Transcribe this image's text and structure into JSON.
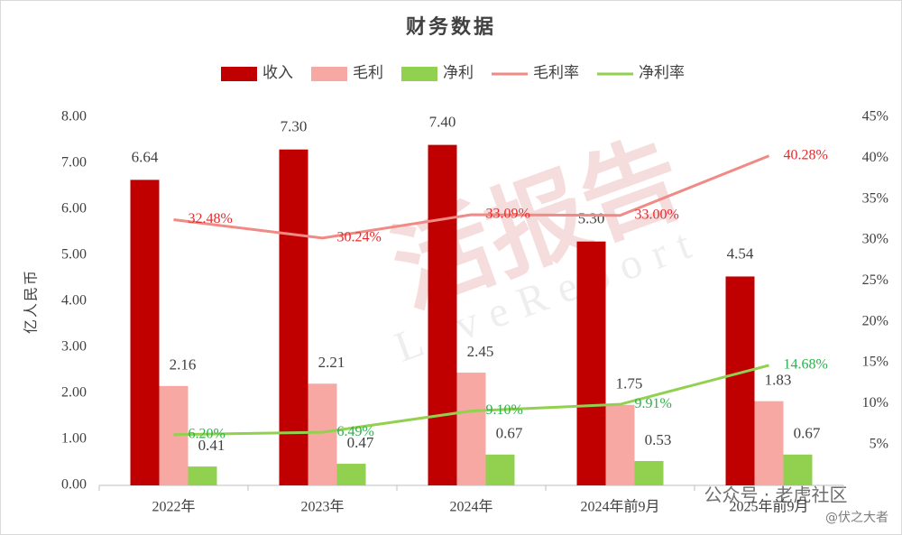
{
  "chart_data": {
    "type": "bar_line",
    "title": "财务数据",
    "ylabel": "亿人民币",
    "categories": [
      "2022年",
      "2023年",
      "2024年",
      "2024年前9月",
      "2025年前9月"
    ],
    "series": [
      {
        "name": "收入",
        "type": "bar",
        "color": "#c00000",
        "values": [
          6.64,
          7.3,
          7.4,
          5.3,
          4.54
        ],
        "value_labels": [
          "6.64",
          "7.30",
          "7.40",
          "5.30",
          "4.54"
        ]
      },
      {
        "name": "毛利",
        "type": "bar",
        "color": "#f7a8a2",
        "values": [
          2.16,
          2.21,
          2.45,
          1.75,
          1.83
        ],
        "value_labels": [
          "2.16",
          "2.21",
          "2.45",
          "1.75",
          "1.83"
        ]
      },
      {
        "name": "净利",
        "type": "bar",
        "color": "#92d050",
        "values": [
          0.41,
          0.47,
          0.67,
          0.53,
          0.67
        ],
        "value_labels": [
          "0.41",
          "0.47",
          "0.67",
          "0.53",
          "0.67"
        ]
      },
      {
        "name": "毛利率",
        "type": "line",
        "axis": "y2",
        "color": "#f08a84",
        "label_color": "#e8282a",
        "values": [
          32.48,
          30.24,
          33.09,
          33.0,
          40.28
        ],
        "value_labels": [
          "32.48%",
          "30.24%",
          "33.09%",
          "33.00%",
          "40.28%"
        ]
      },
      {
        "name": "净利率",
        "type": "line",
        "axis": "y2",
        "color": "#92d050",
        "label_color": "#2bb24c",
        "values": [
          6.2,
          6.49,
          9.1,
          9.91,
          14.68
        ],
        "value_labels": [
          "6.20%",
          "6.49%",
          "9.10%",
          "9.91%",
          "14.68%"
        ]
      }
    ],
    "ylim": [
      0,
      8
    ],
    "yticks": [
      {
        "value": 0,
        "label": "0.00"
      },
      {
        "value": 1,
        "label": "1.00"
      },
      {
        "value": 2,
        "label": "2.00"
      },
      {
        "value": 3,
        "label": "3.00"
      },
      {
        "value": 4,
        "label": "4.00"
      },
      {
        "value": 5,
        "label": "5.00"
      },
      {
        "value": 6,
        "label": "6.00"
      },
      {
        "value": 7,
        "label": "7.00"
      },
      {
        "value": 8,
        "label": "8.00"
      }
    ],
    "y2lim": [
      0,
      45
    ],
    "y2ticks": [
      {
        "value": 5,
        "label": "5%"
      },
      {
        "value": 10,
        "label": "10%"
      },
      {
        "value": 15,
        "label": "15%"
      },
      {
        "value": 20,
        "label": "20%"
      },
      {
        "value": 25,
        "label": "25%"
      },
      {
        "value": 30,
        "label": "30%"
      },
      {
        "value": 35,
        "label": "35%"
      },
      {
        "value": 40,
        "label": "40%"
      },
      {
        "value": 45,
        "label": "45%"
      }
    ],
    "legend": "top",
    "watermarks": [
      "活报告",
      "LiveReport",
      "公众号 · 老虎社区",
      "@伏之大者"
    ]
  }
}
